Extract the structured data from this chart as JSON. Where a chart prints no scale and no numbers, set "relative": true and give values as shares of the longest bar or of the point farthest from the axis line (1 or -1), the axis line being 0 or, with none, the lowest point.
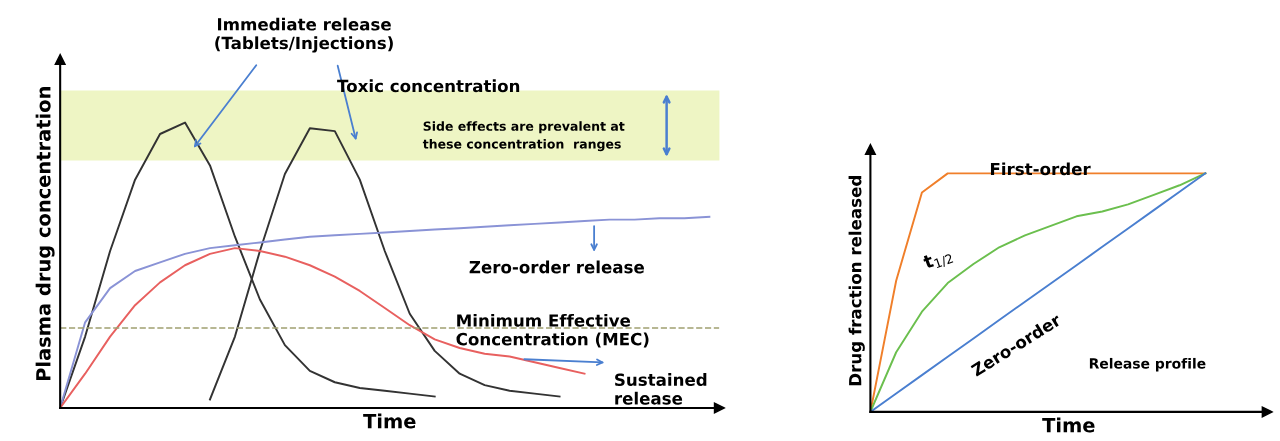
{
  "chart_data": [
    {
      "type": "line",
      "relative": true,
      "xlabel": "Time",
      "ylabel": "Plasma drug concentration",
      "categories": [
        null,
        null,
        null,
        null,
        null,
        null,
        null,
        null,
        null,
        null,
        null,
        null,
        null,
        null,
        null,
        null,
        null,
        null,
        null,
        null,
        null,
        null,
        null,
        null,
        null,
        null,
        null
      ],
      "series": [
        {
          "color": "#333333",
          "values": [
            0,
            0.25,
            0.55,
            0.8,
            0.96,
            1,
            0.85,
            0.6,
            0.38,
            0.22,
            0.13,
            0.09,
            0.07,
            0.06,
            0.05,
            0.04,
            null,
            null,
            null,
            null,
            null,
            null,
            null,
            null,
            null,
            null,
            null
          ]
        },
        {
          "color": "#333333",
          "values": [
            null,
            null,
            null,
            null,
            null,
            null,
            0.03,
            0.25,
            0.55,
            0.82,
            0.98,
            0.97,
            0.8,
            0.55,
            0.33,
            0.2,
            0.12,
            0.08,
            0.06,
            0.05,
            0.04,
            null,
            null,
            null,
            null,
            null,
            null
          ]
        },
        {
          "color": "#8a93d6",
          "values": [
            0,
            0.3,
            0.42,
            0.48,
            0.51,
            0.54,
            0.56,
            0.57,
            0.58,
            0.59,
            0.6,
            0.605,
            0.61,
            0.615,
            0.62,
            0.625,
            0.63,
            0.635,
            0.64,
            0.645,
            0.65,
            0.655,
            0.66,
            0.66,
            0.665,
            0.665,
            0.67
          ]
        },
        {
          "color": "#e8605f",
          "values": [
            0,
            0.12,
            0.25,
            0.36,
            0.44,
            0.5,
            0.54,
            0.56,
            0.55,
            0.53,
            0.5,
            0.46,
            0.41,
            0.35,
            0.29,
            0.24,
            0.21,
            0.19,
            0.18,
            0.16,
            0.14,
            0.12,
            null,
            null,
            null,
            null,
            null
          ]
        }
      ],
      "ref_lines": [
        {
          "axis": "y",
          "value": 0.28,
          "color": "#a0a070",
          "line_style": "dashed"
        }
      ],
      "bands": [
        {
          "axis": "y",
          "from": 0.87,
          "to": 1.11,
          "color": "#eef5c4"
        }
      ],
      "annotations": [
        "Immediate release\n(Tablets/Injections)",
        "Toxic concentration",
        "Side effects are prevalent at\nthese concentration  ranges",
        "Zero-order release",
        "Minimum Effective\nConcentration (MEC)",
        "Sustained\nrelease"
      ]
    },
    {
      "type": "line",
      "relative": true,
      "xlabel": "Time",
      "ylabel": "Drug fraction released",
      "categories": [
        null,
        null,
        null,
        null,
        null,
        null,
        null,
        null,
        null,
        null,
        null,
        null,
        null,
        null,
        null,
        null
      ],
      "series": [
        {
          "color": "#f07f2a",
          "values": [
            0,
            0.55,
            0.92,
            1,
            1,
            1,
            1,
            1,
            1,
            1,
            1,
            1,
            1,
            1,
            null,
            null
          ]
        },
        {
          "color": "#6bbf4e",
          "values": [
            0,
            0.25,
            0.42,
            0.54,
            0.62,
            0.69,
            0.74,
            0.78,
            0.82,
            0.84,
            0.87,
            0.91,
            0.95,
            1,
            null,
            null
          ]
        },
        {
          "color": "#4a7fd0",
          "values": [
            0,
            0.077,
            0.154,
            0.231,
            0.308,
            0.385,
            0.462,
            0.538,
            0.615,
            0.692,
            0.769,
            0.846,
            0.923,
            1,
            null,
            null
          ]
        }
      ],
      "annotations": [
        "First-order",
        "t$_{1/2}$",
        "Zero-order",
        "Release profile"
      ]
    }
  ]
}
